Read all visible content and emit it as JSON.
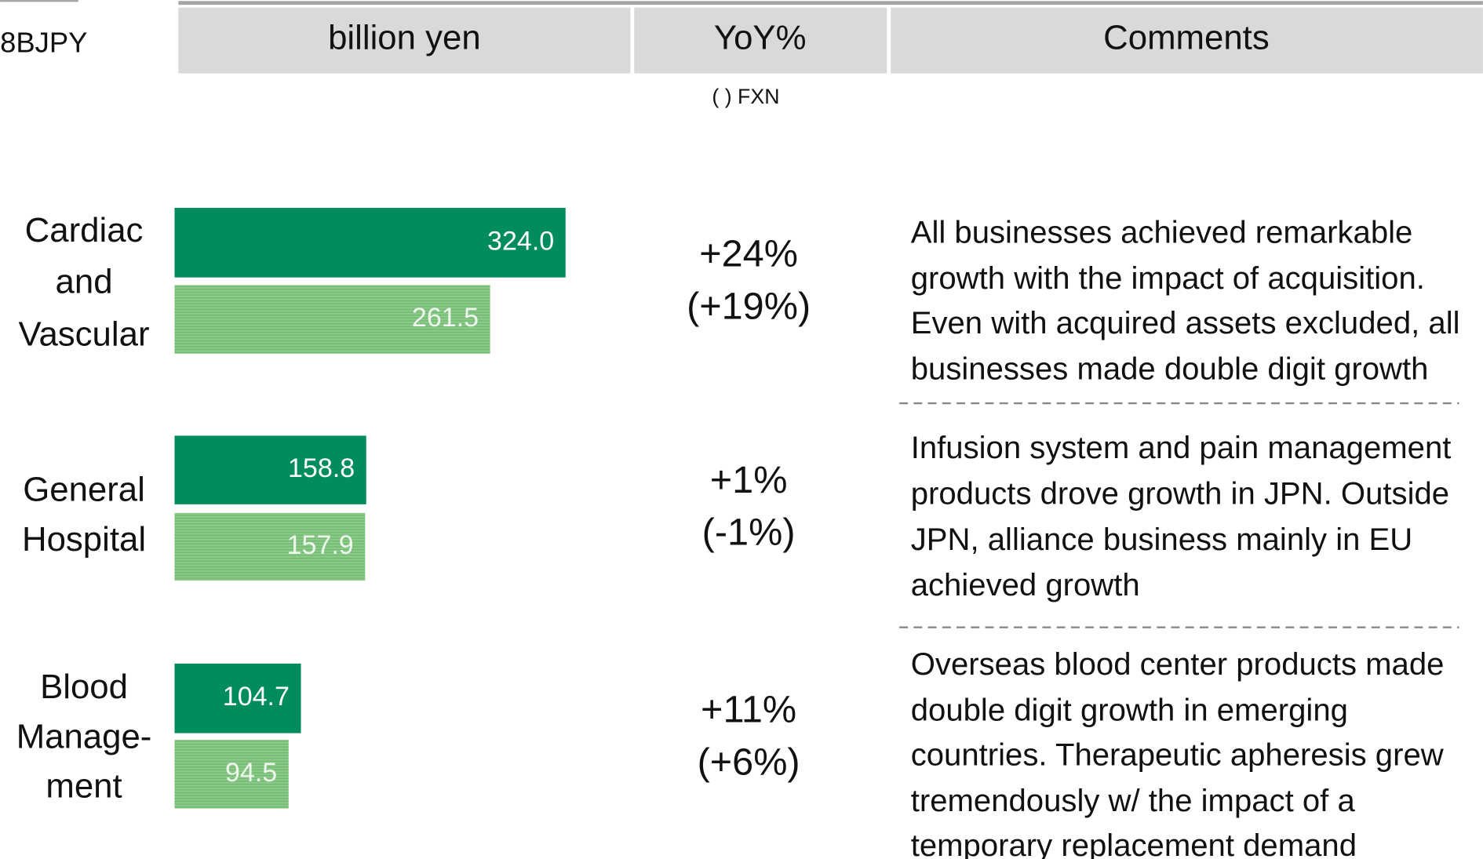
{
  "header": {
    "unit": "8BJPY",
    "columns": [
      "billion yen",
      "YoY%",
      "Comments"
    ],
    "note": "( ) FXN"
  },
  "segments": [
    {
      "name": [
        "Cardiac",
        "and",
        "Vascular"
      ],
      "values": [
        324.0,
        261.5
      ],
      "value_labels": [
        "324.0",
        "261.5"
      ],
      "yoy": "+24%",
      "yoy_fxn": "(+19%)",
      "comment": [
        "All businesses achieved remarkable",
        "growth with the impact of acquisition.",
        "Even with acquired assets excluded, all",
        "businesses made double digit growth"
      ]
    },
    {
      "name": [
        "General",
        "Hospital"
      ],
      "values": [
        158.8,
        157.9
      ],
      "value_labels": [
        "158.8",
        "157.9"
      ],
      "yoy": "+1%",
      "yoy_fxn": "(-1%)",
      "comment": [
        "Infusion system and pain management",
        "products drove growth in JPN. Outside",
        "JPN, alliance business mainly in EU",
        "achieved growth"
      ]
    },
    {
      "name": [
        "Blood",
        "Manage-",
        "ment"
      ],
      "values": [
        104.7,
        94.5
      ],
      "value_labels": [
        "104.7",
        "94.5"
      ],
      "yoy": "+11%",
      "yoy_fxn": "(+6%)",
      "comment": [
        "Overseas blood center products made",
        "double digit growth in emerging",
        "countries. Therapeutic apheresis grew",
        "tremendously w/ the impact of a",
        "temporary replacement demand"
      ]
    }
  ]
}
